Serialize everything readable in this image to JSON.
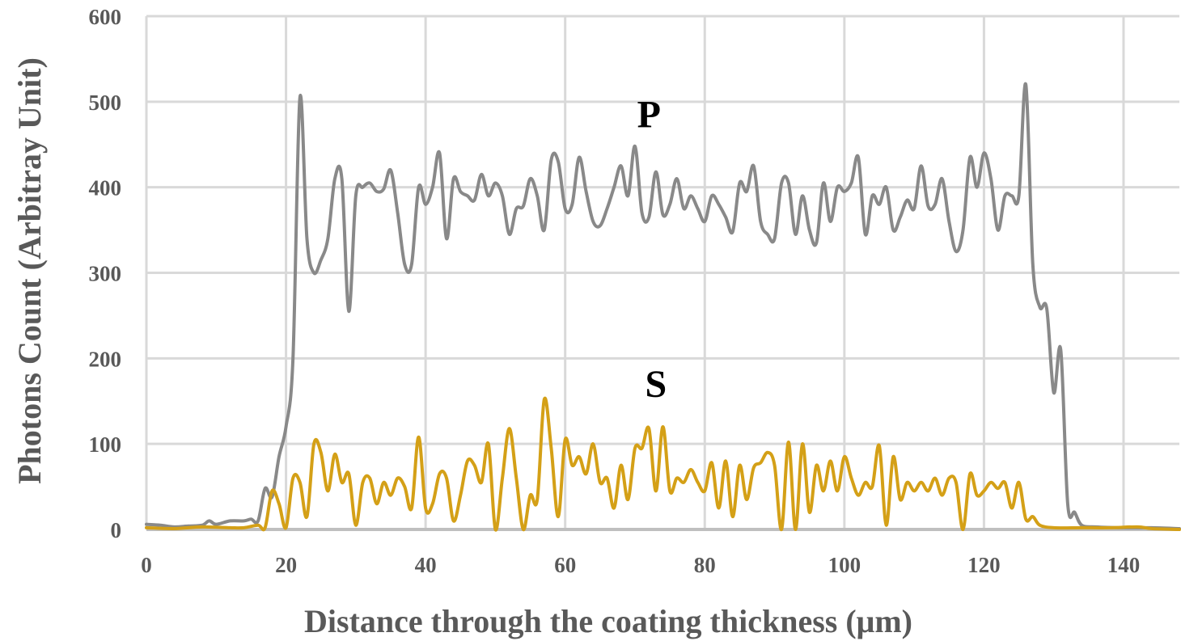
{
  "chart_data": {
    "type": "line",
    "title": "",
    "xlabel": "Distance through the coating thickness (μm)",
    "ylabel": "Photons Count (Arbitray Unit)",
    "xlim": [
      0,
      148
    ],
    "ylim": [
      0,
      600
    ],
    "xticks": [
      0,
      20,
      40,
      60,
      80,
      100,
      120,
      140
    ],
    "yticks": [
      0,
      100,
      200,
      300,
      400,
      500,
      600
    ],
    "grid": true,
    "legend": "none",
    "annotations": [
      {
        "text": "P",
        "x": 72,
        "y": 470
      },
      {
        "text": "S",
        "x": 73,
        "y": 155
      }
    ],
    "series": [
      {
        "name": "P",
        "color": "#898989",
        "points": [
          [
            0,
            6
          ],
          [
            2,
            5
          ],
          [
            4,
            3
          ],
          [
            6,
            4
          ],
          [
            8,
            5
          ],
          [
            9,
            10
          ],
          [
            10,
            6
          ],
          [
            12,
            10
          ],
          [
            14,
            10
          ],
          [
            15,
            12
          ],
          [
            16,
            10
          ],
          [
            17,
            48
          ],
          [
            18,
            38
          ],
          [
            19,
            85
          ],
          [
            20,
            120
          ],
          [
            21,
            200
          ],
          [
            22,
            505
          ],
          [
            23,
            340
          ],
          [
            24,
            300
          ],
          [
            25,
            315
          ],
          [
            26,
            340
          ],
          [
            27,
            410
          ],
          [
            28,
            410
          ],
          [
            29,
            255
          ],
          [
            30,
            390
          ],
          [
            31,
            400
          ],
          [
            32,
            405
          ],
          [
            33,
            395
          ],
          [
            34,
            398
          ],
          [
            35,
            420
          ],
          [
            36,
            370
          ],
          [
            37,
            310
          ],
          [
            38,
            310
          ],
          [
            39,
            400
          ],
          [
            40,
            380
          ],
          [
            41,
            400
          ],
          [
            42,
            440
          ],
          [
            43,
            340
          ],
          [
            44,
            410
          ],
          [
            45,
            395
          ],
          [
            46,
            390
          ],
          [
            47,
            385
          ],
          [
            48,
            415
          ],
          [
            49,
            390
          ],
          [
            50,
            405
          ],
          [
            51,
            390
          ],
          [
            52,
            345
          ],
          [
            53,
            375
          ],
          [
            54,
            378
          ],
          [
            55,
            410
          ],
          [
            56,
            390
          ],
          [
            57,
            350
          ],
          [
            58,
            432
          ],
          [
            59,
            430
          ],
          [
            60,
            375
          ],
          [
            61,
            380
          ],
          [
            62,
            435
          ],
          [
            63,
            395
          ],
          [
            64,
            360
          ],
          [
            65,
            355
          ],
          [
            66,
            375
          ],
          [
            67,
            400
          ],
          [
            68,
            425
          ],
          [
            69,
            390
          ],
          [
            70,
            448
          ],
          [
            71,
            370
          ],
          [
            72,
            365
          ],
          [
            73,
            418
          ],
          [
            74,
            368
          ],
          [
            75,
            380
          ],
          [
            76,
            410
          ],
          [
            77,
            375
          ],
          [
            78,
            390
          ],
          [
            79,
            375
          ],
          [
            80,
            360
          ],
          [
            81,
            390
          ],
          [
            82,
            380
          ],
          [
            83,
            365
          ],
          [
            84,
            348
          ],
          [
            85,
            405
          ],
          [
            86,
            395
          ],
          [
            87,
            425
          ],
          [
            88,
            360
          ],
          [
            89,
            345
          ],
          [
            90,
            340
          ],
          [
            91,
            405
          ],
          [
            92,
            405
          ],
          [
            93,
            345
          ],
          [
            94,
            390
          ],
          [
            95,
            350
          ],
          [
            96,
            335
          ],
          [
            97,
            405
          ],
          [
            98,
            360
          ],
          [
            99,
            400
          ],
          [
            100,
            395
          ],
          [
            101,
            405
          ],
          [
            102,
            435
          ],
          [
            103,
            345
          ],
          [
            104,
            390
          ],
          [
            105,
            380
          ],
          [
            106,
            400
          ],
          [
            107,
            350
          ],
          [
            108,
            365
          ],
          [
            109,
            385
          ],
          [
            110,
            375
          ],
          [
            111,
            425
          ],
          [
            112,
            378
          ],
          [
            113,
            380
          ],
          [
            114,
            410
          ],
          [
            115,
            360
          ],
          [
            116,
            325
          ],
          [
            117,
            350
          ],
          [
            118,
            435
          ],
          [
            119,
            400
          ],
          [
            120,
            440
          ],
          [
            121,
            410
          ],
          [
            122,
            350
          ],
          [
            123,
            390
          ],
          [
            124,
            390
          ],
          [
            125,
            390
          ],
          [
            126,
            520
          ],
          [
            127,
            310
          ],
          [
            128,
            260
          ],
          [
            129,
            258
          ],
          [
            130,
            160
          ],
          [
            131,
            210
          ],
          [
            132,
            30
          ],
          [
            133,
            20
          ],
          [
            134,
            5
          ],
          [
            136,
            3
          ],
          [
            140,
            2
          ],
          [
            144,
            2
          ],
          [
            148,
            1
          ]
        ]
      },
      {
        "name": "S",
        "color": "#d4a017",
        "points": [
          [
            0,
            2
          ],
          [
            4,
            1
          ],
          [
            8,
            3
          ],
          [
            12,
            2
          ],
          [
            14,
            2
          ],
          [
            16,
            5
          ],
          [
            17,
            2
          ],
          [
            18,
            45
          ],
          [
            19,
            30
          ],
          [
            20,
            2
          ],
          [
            21,
            60
          ],
          [
            22,
            55
          ],
          [
            23,
            15
          ],
          [
            24,
            100
          ],
          [
            25,
            90
          ],
          [
            26,
            45
          ],
          [
            27,
            88
          ],
          [
            28,
            55
          ],
          [
            29,
            65
          ],
          [
            30,
            5
          ],
          [
            31,
            55
          ],
          [
            32,
            60
          ],
          [
            33,
            30
          ],
          [
            34,
            55
          ],
          [
            35,
            40
          ],
          [
            36,
            60
          ],
          [
            37,
            50
          ],
          [
            38,
            25
          ],
          [
            39,
            108
          ],
          [
            40,
            25
          ],
          [
            41,
            30
          ],
          [
            42,
            65
          ],
          [
            43,
            60
          ],
          [
            44,
            10
          ],
          [
            45,
            40
          ],
          [
            46,
            80
          ],
          [
            47,
            75
          ],
          [
            48,
            55
          ],
          [
            49,
            100
          ],
          [
            50,
            0
          ],
          [
            51,
            60
          ],
          [
            52,
            118
          ],
          [
            53,
            60
          ],
          [
            54,
            0
          ],
          [
            55,
            40
          ],
          [
            56,
            35
          ],
          [
            57,
            152
          ],
          [
            58,
            95
          ],
          [
            59,
            15
          ],
          [
            60,
            105
          ],
          [
            61,
            75
          ],
          [
            62,
            85
          ],
          [
            63,
            65
          ],
          [
            64,
            100
          ],
          [
            65,
            55
          ],
          [
            66,
            60
          ],
          [
            67,
            25
          ],
          [
            68,
            75
          ],
          [
            69,
            35
          ],
          [
            70,
            95
          ],
          [
            71,
            95
          ],
          [
            72,
            118
          ],
          [
            73,
            45
          ],
          [
            74,
            120
          ],
          [
            75,
            45
          ],
          [
            76,
            60
          ],
          [
            77,
            55
          ],
          [
            78,
            70
          ],
          [
            79,
            55
          ],
          [
            80,
            45
          ],
          [
            81,
            78
          ],
          [
            82,
            25
          ],
          [
            83,
            80
          ],
          [
            84,
            15
          ],
          [
            85,
            75
          ],
          [
            86,
            35
          ],
          [
            87,
            72
          ],
          [
            88,
            78
          ],
          [
            89,
            90
          ],
          [
            90,
            75
          ],
          [
            91,
            0
          ],
          [
            92,
            102
          ],
          [
            93,
            0
          ],
          [
            94,
            100
          ],
          [
            95,
            20
          ],
          [
            96,
            75
          ],
          [
            97,
            45
          ],
          [
            98,
            80
          ],
          [
            99,
            45
          ],
          [
            100,
            85
          ],
          [
            101,
            60
          ],
          [
            102,
            40
          ],
          [
            103,
            55
          ],
          [
            104,
            50
          ],
          [
            105,
            98
          ],
          [
            106,
            5
          ],
          [
            107,
            85
          ],
          [
            108,
            35
          ],
          [
            109,
            55
          ],
          [
            110,
            45
          ],
          [
            111,
            55
          ],
          [
            112,
            45
          ],
          [
            113,
            60
          ],
          [
            114,
            40
          ],
          [
            115,
            60
          ],
          [
            116,
            55
          ],
          [
            117,
            0
          ],
          [
            118,
            65
          ],
          [
            119,
            40
          ],
          [
            120,
            45
          ],
          [
            121,
            55
          ],
          [
            122,
            48
          ],
          [
            123,
            55
          ],
          [
            124,
            25
          ],
          [
            125,
            55
          ],
          [
            126,
            12
          ],
          [
            127,
            15
          ],
          [
            128,
            5
          ],
          [
            130,
            2
          ],
          [
            134,
            2
          ],
          [
            138,
            2
          ],
          [
            142,
            3
          ],
          [
            144,
            1
          ],
          [
            148,
            0
          ]
        ]
      }
    ]
  }
}
